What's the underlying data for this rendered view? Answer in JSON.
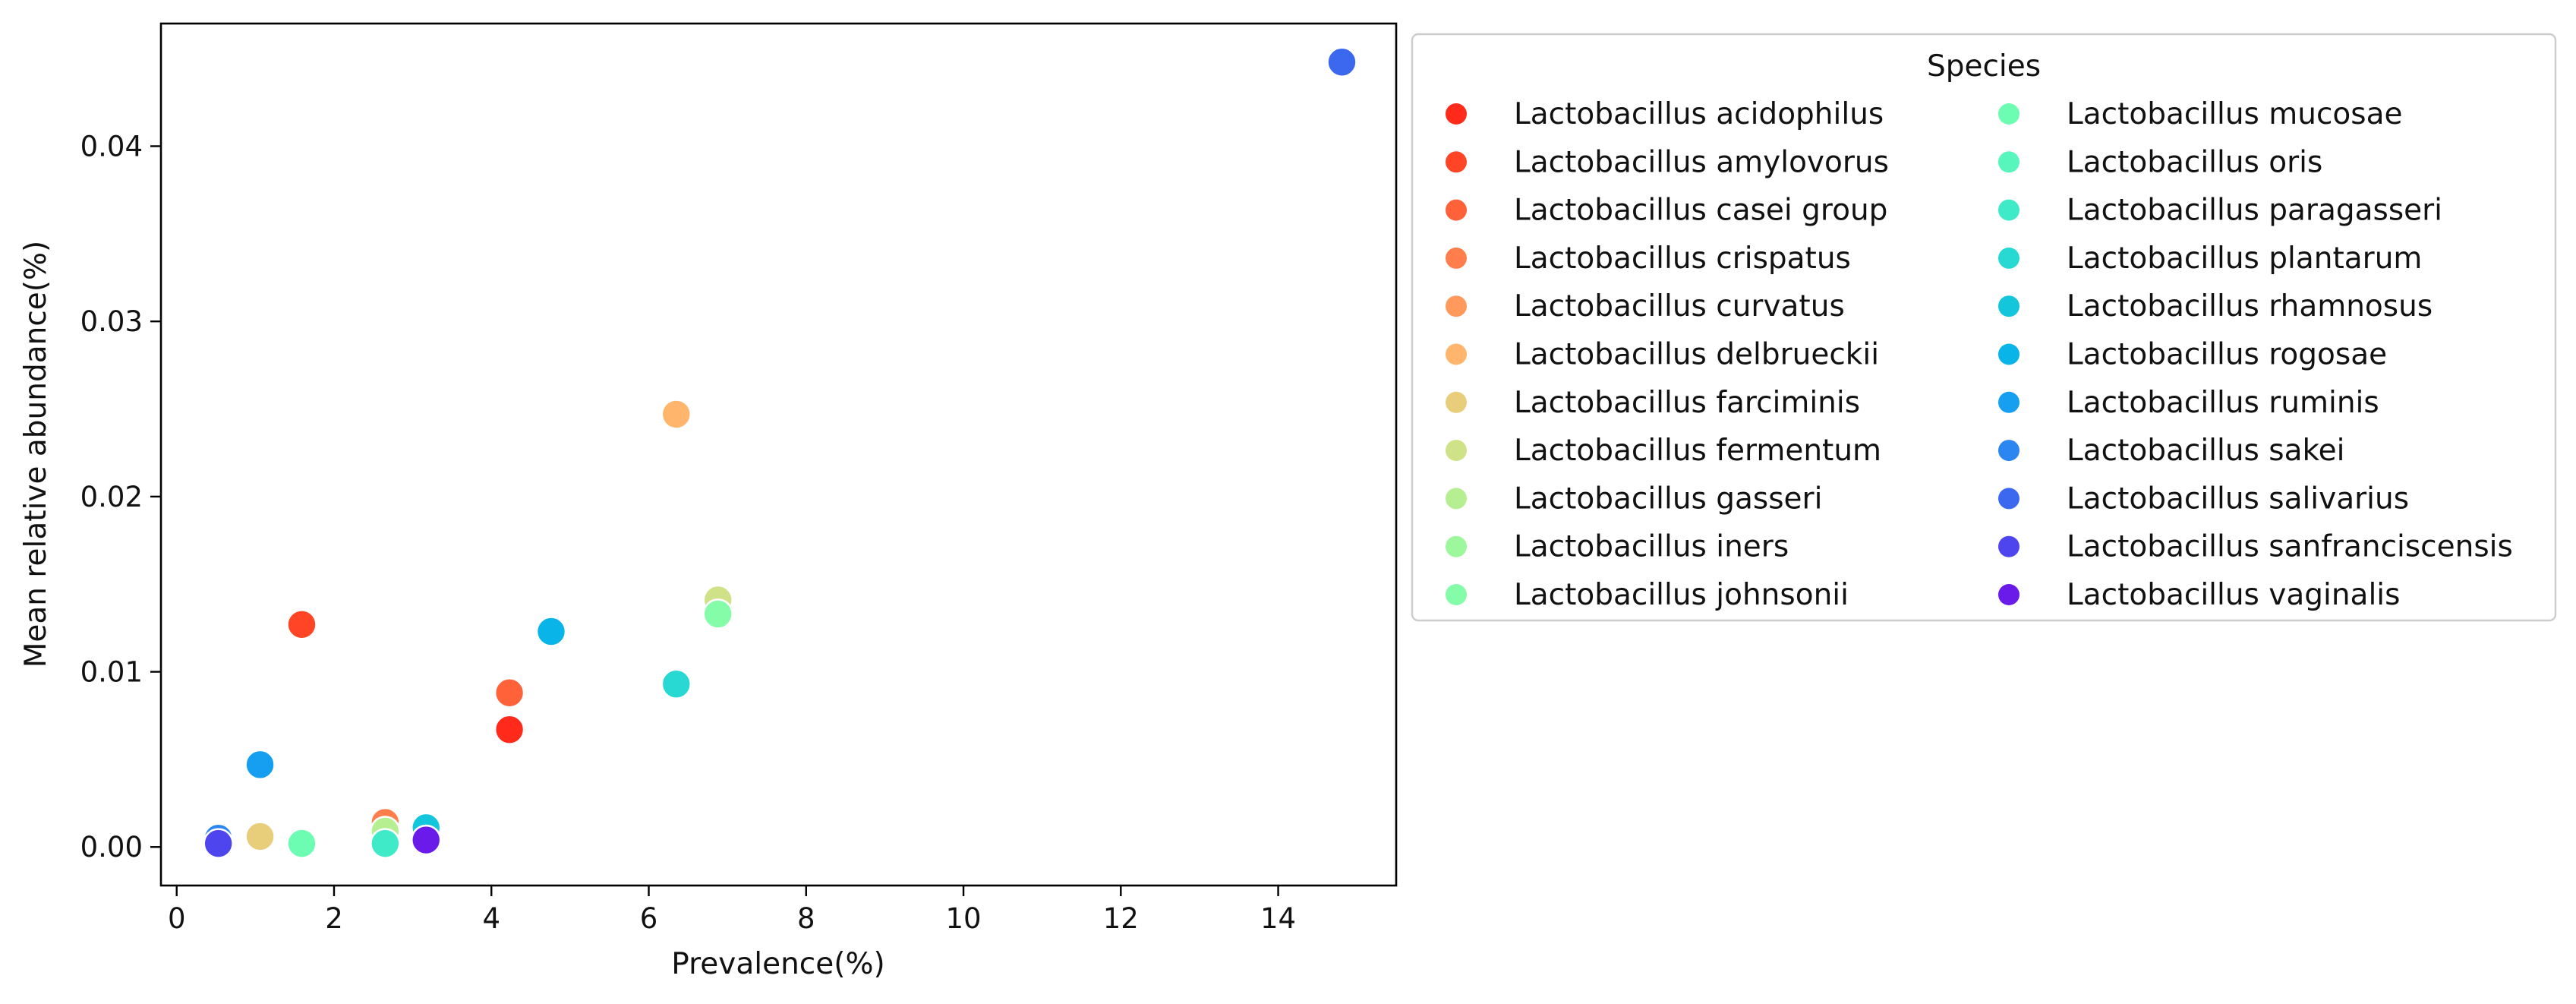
{
  "chart_data": {
    "type": "scatter",
    "title": "",
    "xlabel": "Prevalence(%)",
    "ylabel": "Mean relative abundance(%)",
    "xlim": [
      -0.2,
      15.5
    ],
    "ylim": [
      -0.0022,
      0.047
    ],
    "xticks": [
      0,
      2,
      4,
      6,
      8,
      10,
      12,
      14
    ],
    "yticks": [
      0.0,
      0.01,
      0.02,
      0.03,
      0.04
    ],
    "ytick_labels": [
      "0.00",
      "0.01",
      "0.02",
      "0.03",
      "0.04"
    ],
    "grid": false,
    "legend": {
      "title": "Species",
      "placement": "outside-right",
      "columns": 2
    },
    "series": [
      {
        "name": "Lactobacillus acidophilus",
        "color": "#ff2a1a",
        "points": [
          [
            4.23,
            0.0067
          ]
        ]
      },
      {
        "name": "Lactobacillus amylovorus",
        "color": "#ff4525",
        "points": [
          [
            1.59,
            0.0127
          ]
        ]
      },
      {
        "name": "Lactobacillus casei group",
        "color": "#ff6238",
        "points": [
          [
            4.23,
            0.0088
          ]
        ]
      },
      {
        "name": "Lactobacillus crispatus",
        "color": "#ff7e4b",
        "points": [
          [
            2.65,
            0.0014
          ]
        ]
      },
      {
        "name": "Lactobacillus curvatus",
        "color": "#ff9a5c",
        "points": [
          [
            0.53,
            0.0005
          ]
        ]
      },
      {
        "name": "Lactobacillus delbrueckii",
        "color": "#ffb66c",
        "points": [
          [
            6.35,
            0.0247
          ]
        ]
      },
      {
        "name": "Lactobacillus farciminis",
        "color": "#e8cd7a",
        "points": [
          [
            1.06,
            0.0006
          ]
        ]
      },
      {
        "name": "Lactobacillus fermentum",
        "color": "#cfe288",
        "points": [
          [
            6.88,
            0.0141
          ]
        ]
      },
      {
        "name": "Lactobacillus gasseri",
        "color": "#b6ee92",
        "points": [
          [
            2.65,
            0.0009
          ]
        ]
      },
      {
        "name": "Lactobacillus iners",
        "color": "#9cf79d",
        "points": [
          [
            0.53,
            0.0003
          ]
        ]
      },
      {
        "name": "Lactobacillus johnsonii",
        "color": "#84fca8",
        "points": [
          [
            6.88,
            0.0133
          ]
        ]
      },
      {
        "name": "Lactobacillus mucosae",
        "color": "#6dfdb2",
        "points": [
          [
            1.59,
            0.0002
          ]
        ]
      },
      {
        "name": "Lactobacillus oris",
        "color": "#56f6bd",
        "points": [
          [
            0.53,
            0.0002
          ]
        ]
      },
      {
        "name": "Lactobacillus paragasseri",
        "color": "#3eeac8",
        "points": [
          [
            2.65,
            0.0002
          ]
        ]
      },
      {
        "name": "Lactobacillus plantarum",
        "color": "#27d9d2",
        "points": [
          [
            6.35,
            0.0093
          ]
        ]
      },
      {
        "name": "Lactobacillus rhamnosus",
        "color": "#14c6dc",
        "points": [
          [
            3.17,
            0.0011
          ]
        ]
      },
      {
        "name": "Lactobacillus rogosae",
        "color": "#09b4e8",
        "points": [
          [
            4.76,
            0.0123
          ]
        ]
      },
      {
        "name": "Lactobacillus ruminis",
        "color": "#169ff0",
        "points": [
          [
            1.06,
            0.0047
          ]
        ]
      },
      {
        "name": "Lactobacillus sakei",
        "color": "#2b86f2",
        "points": [
          [
            0.53,
            0.0005
          ]
        ]
      },
      {
        "name": "Lactobacillus salivarius",
        "color": "#3c68f0",
        "points": [
          [
            14.81,
            0.0448
          ]
        ]
      },
      {
        "name": "Lactobacillus sanfranciscensis",
        "color": "#4e45ee",
        "points": [
          [
            0.53,
            0.0002
          ]
        ]
      },
      {
        "name": "Lactobacillus vaginalis",
        "color": "#6a1bea",
        "points": [
          [
            3.17,
            0.0004
          ]
        ]
      }
    ]
  }
}
